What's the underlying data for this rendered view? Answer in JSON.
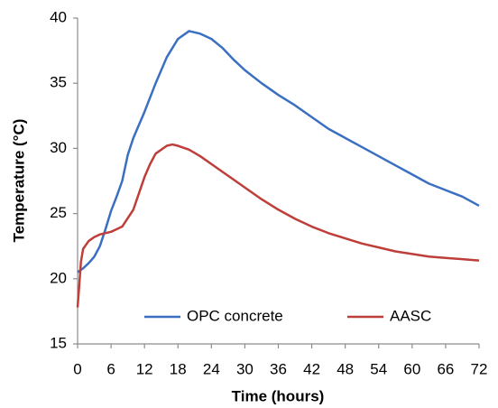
{
  "chart_data": {
    "type": "line",
    "x_label": "Time (hours)",
    "y_label": "Temperature (°C)",
    "xlim": [
      0,
      72
    ],
    "xticks": [
      0,
      6,
      12,
      18,
      24,
      30,
      36,
      42,
      48,
      54,
      60,
      66,
      72
    ],
    "ylim": [
      15,
      40
    ],
    "yticks": [
      15,
      20,
      25,
      30,
      35,
      40
    ],
    "grid": false,
    "legend": "bottom",
    "series": [
      {
        "name": "OPC concrete",
        "color": "#3b6fc2",
        "x": [
          0,
          1,
          2,
          3,
          4,
          5,
          6,
          7,
          8,
          9,
          10,
          11,
          12,
          14,
          16,
          18,
          20,
          22,
          24,
          26,
          28,
          30,
          33,
          36,
          39,
          42,
          45,
          48,
          51,
          54,
          57,
          60,
          63,
          66,
          69,
          72
        ],
        "values": [
          20.5,
          20.8,
          21.2,
          21.7,
          22.5,
          23.8,
          25.2,
          26.3,
          27.5,
          29.5,
          30.8,
          31.8,
          32.8,
          35,
          37,
          38.4,
          39,
          38.8,
          38.4,
          37.7,
          36.8,
          36,
          35,
          34.1,
          33.3,
          32.4,
          31.5,
          30.8,
          30.1,
          29.4,
          28.7,
          28,
          27.3,
          26.8,
          26.3,
          25.6
        ]
      },
      {
        "name": "AASC",
        "color": "#be3e3a",
        "x": [
          0,
          0.3,
          0.6,
          1,
          2,
          3,
          4,
          6,
          8,
          10,
          12,
          13,
          14,
          16,
          17,
          18,
          20,
          22,
          24,
          27,
          30,
          33,
          36,
          39,
          42,
          45,
          48,
          51,
          54,
          57,
          60,
          63,
          66,
          69,
          72
        ],
        "values": [
          17.8,
          19.5,
          21.3,
          22.3,
          22.9,
          23.2,
          23.4,
          23.6,
          24,
          25.3,
          27.8,
          28.8,
          29.6,
          30.2,
          30.3,
          30.2,
          29.9,
          29.4,
          28.8,
          27.9,
          27,
          26.1,
          25.3,
          24.6,
          24,
          23.5,
          23.1,
          22.7,
          22.4,
          22.1,
          21.9,
          21.7,
          21.6,
          21.5,
          21.4
        ]
      }
    ]
  }
}
